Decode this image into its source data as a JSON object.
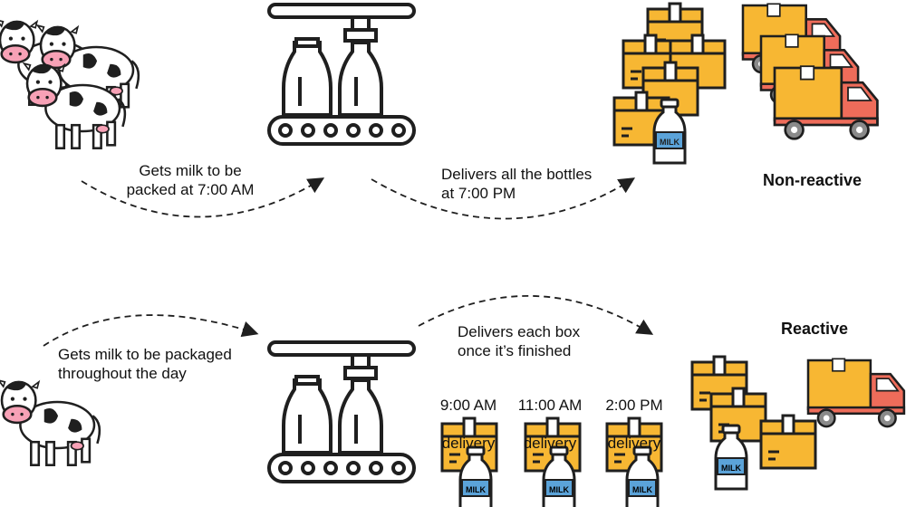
{
  "top": {
    "arrow1_label": "Gets milk to be\npacked at 7:00 AM",
    "arrow2_label": "Delivers all the bottles\nat 7:00 PM",
    "title": "Non-reactive"
  },
  "bottom": {
    "arrow1_label": "Gets milk to be packaged\nthroughout the day",
    "arrow2_label": "Delivers each box\nonce it’s finished",
    "deliveries": [
      {
        "time": "9:00 AM",
        "word": "delivery"
      },
      {
        "time": "11:00 AM",
        "word": "delivery"
      },
      {
        "time": "2:00 PM",
        "word": "delivery"
      }
    ],
    "title": "Reactive"
  },
  "bottle_text": "MILK",
  "colors": {
    "box": "#F7B733",
    "box_dark": "#E79C1A",
    "truck_cab": "#EE6C5A",
    "tape": "#FFFFFF",
    "outline": "#1F1F1F",
    "wheel": "#8A8A8A",
    "bottle_label": "#5BA3D9"
  }
}
